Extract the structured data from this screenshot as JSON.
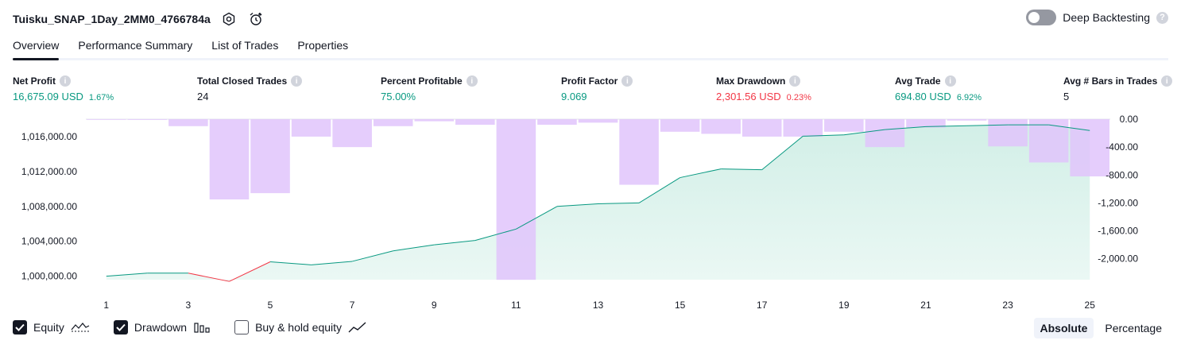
{
  "header": {
    "title": "Tuisku_SNAP_1Day_2MM0_4766784a",
    "deep_backtesting_label": "Deep Backtesting",
    "help_glyph": "?"
  },
  "tabs": [
    {
      "label": "Overview",
      "active": true
    },
    {
      "label": "Performance Summary",
      "active": false
    },
    {
      "label": "List of Trades",
      "active": false
    },
    {
      "label": "Properties",
      "active": false
    }
  ],
  "metrics": {
    "net_profit": {
      "label": "Net Profit",
      "value": "16,675.09 USD",
      "pct": "1.67%"
    },
    "total_closed_trades": {
      "label": "Total Closed Trades",
      "value": "24"
    },
    "percent_profitable": {
      "label": "Percent Profitable",
      "value": "75.00%"
    },
    "profit_factor": {
      "label": "Profit Factor",
      "value": "9.069"
    },
    "max_drawdown": {
      "label": "Max Drawdown",
      "value": "2,301.56 USD",
      "pct": "0.23%"
    },
    "avg_trade": {
      "label": "Avg Trade",
      "value": "694.80 USD",
      "pct": "6.92%"
    },
    "avg_bars": {
      "label": "Avg # Bars in Trades",
      "value": "5"
    }
  },
  "colors": {
    "equity_line": "#089981",
    "equity_loss_line": "#f23645",
    "equity_fill": "#d2efe7",
    "drawdown_bar": "#e1c4fb",
    "overlap_bar": "#aab9df",
    "axis_text": "#131722"
  },
  "chart_data": {
    "type": "bar+area",
    "x": [
      1,
      2,
      3,
      4,
      5,
      6,
      7,
      8,
      9,
      10,
      11,
      12,
      13,
      14,
      15,
      16,
      17,
      18,
      19,
      20,
      21,
      22,
      23,
      24,
      25
    ],
    "x_ticks": [
      "1",
      "3",
      "5",
      "7",
      "9",
      "11",
      "13",
      "15",
      "17",
      "19",
      "21",
      "23",
      "25"
    ],
    "series": [
      {
        "name": "Equity",
        "axis": "left",
        "values": [
          1000000,
          1000350,
          1000350,
          999400,
          1001650,
          1001300,
          1001700,
          1002900,
          1003600,
          1004100,
          1005400,
          1008000,
          1008300,
          1008400,
          1011300,
          1012300,
          1012200,
          1016050,
          1016200,
          1016800,
          1017150,
          1017250,
          1017350,
          1017350,
          1016700
        ]
      },
      {
        "name": "Drawdown",
        "axis": "right",
        "values": [
          -5,
          -10,
          -100,
          -1150,
          -1060,
          -250,
          -400,
          -100,
          -30,
          -80,
          -2301.56,
          -80,
          -50,
          -940,
          -180,
          -210,
          -250,
          -250,
          -180,
          -400,
          -120,
          -20,
          -390,
          -620,
          -820
        ]
      }
    ],
    "left_axis": {
      "ticks": [
        "1,000,000.00",
        "1,004,000.00",
        "1,008,000.00",
        "1,012,000.00",
        "1,016,000.00"
      ],
      "range": [
        999600,
        1018000
      ]
    },
    "right_axis": {
      "ticks": [
        "0.00",
        "-400.00",
        "-800.00",
        "-1,200.00",
        "-1,600.00",
        "-2,000.00"
      ],
      "range": [
        0,
        -2300
      ]
    }
  },
  "legend": {
    "equity_label": "Equity",
    "drawdown_label": "Drawdown",
    "buy_hold_label": "Buy & hold equity",
    "equity_checked": true,
    "drawdown_checked": true,
    "buy_hold_checked": false
  },
  "modes": {
    "absolute": "Absolute",
    "percentage": "Percentage",
    "selected": "Absolute"
  }
}
